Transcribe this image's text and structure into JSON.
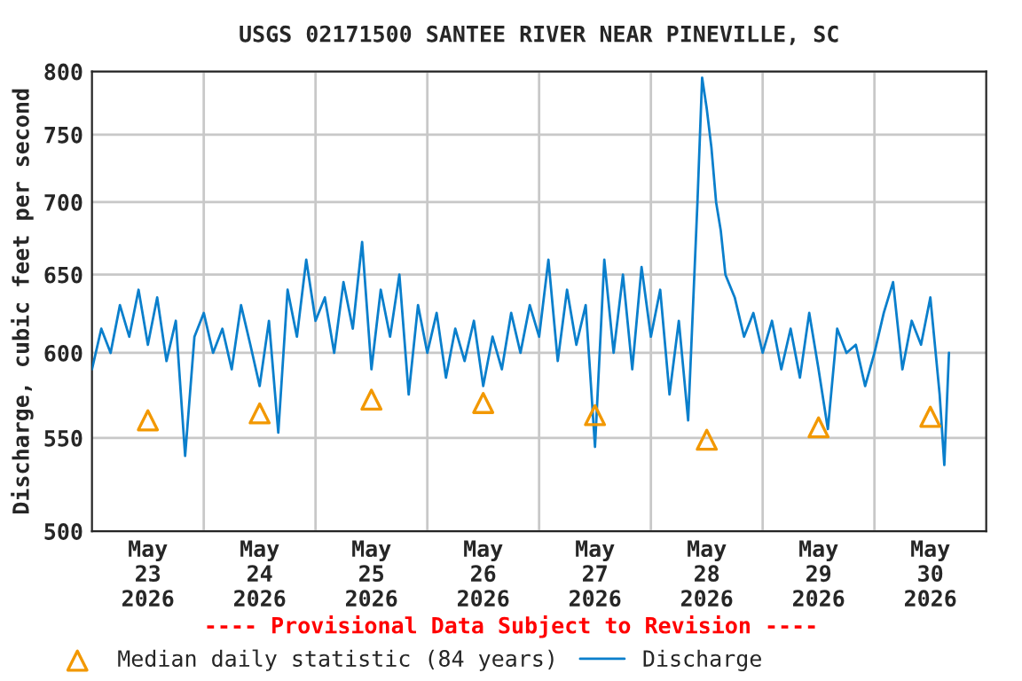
{
  "chart_data": {
    "type": "line",
    "title": "USGS 02171500 SANTEE RIVER NEAR PINEVILLE, SC",
    "ylabel": "Discharge, cubic feet per second",
    "log": "y",
    "ylim": [
      500,
      800
    ],
    "yticks": [
      500,
      550,
      600,
      650,
      700,
      750,
      800
    ],
    "xlim": [
      "2026-05-23T00:00",
      "2026-05-31T00:00"
    ],
    "xticks": [
      {
        "value": "2026-05-23T12:00",
        "label": "May\n23\n2026"
      },
      {
        "value": "2026-05-24T12:00",
        "label": "May\n24\n2026"
      },
      {
        "value": "2026-05-25T12:00",
        "label": "May\n25\n2026"
      },
      {
        "value": "2026-05-26T12:00",
        "label": "May\n26\n2026"
      },
      {
        "value": "2026-05-27T12:00",
        "label": "May\n27\n2026"
      },
      {
        "value": "2026-05-28T12:00",
        "label": "May\n28\n2026"
      },
      {
        "value": "2026-05-29T12:00",
        "label": "May\n29\n2026"
      },
      {
        "value": "2026-05-30T12:00",
        "label": "May\n30\n2026"
      },
      {
        "value": "2026-05-24T00:00",
        "label": null
      },
      {
        "value": "2026-05-25T00:00",
        "label": null
      },
      {
        "value": "2026-05-26T00:00",
        "label": null
      },
      {
        "value": "2026-05-27T00:00",
        "label": null
      },
      {
        "value": "2026-05-28T00:00",
        "label": null
      },
      {
        "value": "2026-05-29T00:00",
        "label": null
      },
      {
        "value": "2026-05-30T00:00",
        "label": null
      }
    ],
    "grid": true,
    "legend": "bottom",
    "annotations": [
      "---- Provisional Data Subject to Revision ----"
    ],
    "series": [
      {
        "name": "Median daily statistic (84 years)",
        "type": "scatter",
        "marker": "triangle",
        "color": "#f29800",
        "x": [
          "2026-05-23T12:00",
          "2026-05-24T12:00",
          "2026-05-25T12:00",
          "2026-05-26T12:00",
          "2026-05-27T12:00",
          "2026-05-28T12:00",
          "2026-05-29T12:00",
          "2026-05-30T12:00"
        ],
        "values": [
          560,
          564,
          572,
          570,
          563,
          549,
          556,
          562
        ]
      },
      {
        "name": "Discharge",
        "marker": "none",
        "color": "#0a7fcc",
        "x": [
          "2026-05-23T00:00",
          "2026-05-23T02:00",
          "2026-05-23T04:00",
          "2026-05-23T06:00",
          "2026-05-23T08:00",
          "2026-05-23T10:00",
          "2026-05-23T12:00",
          "2026-05-23T14:00",
          "2026-05-23T16:00",
          "2026-05-23T18:00",
          "2026-05-23T20:00",
          "2026-05-23T22:00",
          "2026-05-24T00:00",
          "2026-05-24T02:00",
          "2026-05-24T04:00",
          "2026-05-24T06:00",
          "2026-05-24T08:00",
          "2026-05-24T10:00",
          "2026-05-24T12:00",
          "2026-05-24T14:00",
          "2026-05-24T16:00",
          "2026-05-24T18:00",
          "2026-05-24T20:00",
          "2026-05-24T22:00",
          "2026-05-25T00:00",
          "2026-05-25T02:00",
          "2026-05-25T04:00",
          "2026-05-25T06:00",
          "2026-05-25T08:00",
          "2026-05-25T10:00",
          "2026-05-25T12:00",
          "2026-05-25T14:00",
          "2026-05-25T16:00",
          "2026-05-25T18:00",
          "2026-05-25T20:00",
          "2026-05-25T22:00",
          "2026-05-26T00:00",
          "2026-05-26T02:00",
          "2026-05-26T04:00",
          "2026-05-26T06:00",
          "2026-05-26T08:00",
          "2026-05-26T10:00",
          "2026-05-26T12:00",
          "2026-05-26T14:00",
          "2026-05-26T16:00",
          "2026-05-26T18:00",
          "2026-05-26T20:00",
          "2026-05-26T22:00",
          "2026-05-27T00:00",
          "2026-05-27T02:00",
          "2026-05-27T04:00",
          "2026-05-27T06:00",
          "2026-05-27T08:00",
          "2026-05-27T10:00",
          "2026-05-27T12:00",
          "2026-05-27T14:00",
          "2026-05-27T16:00",
          "2026-05-27T18:00",
          "2026-05-27T20:00",
          "2026-05-27T22:00",
          "2026-05-28T00:00",
          "2026-05-28T02:00",
          "2026-05-28T04:00",
          "2026-05-28T06:00",
          "2026-05-28T08:00",
          "2026-05-28T10:00",
          "2026-05-28T11:00",
          "2026-05-28T12:00",
          "2026-05-28T13:00",
          "2026-05-28T14:00",
          "2026-05-28T15:00",
          "2026-05-28T16:00",
          "2026-05-28T18:00",
          "2026-05-28T20:00",
          "2026-05-28T22:00",
          "2026-05-29T00:00",
          "2026-05-29T02:00",
          "2026-05-29T04:00",
          "2026-05-29T06:00",
          "2026-05-29T08:00",
          "2026-05-29T10:00",
          "2026-05-29T12:00",
          "2026-05-29T14:00",
          "2026-05-29T16:00",
          "2026-05-29T18:00",
          "2026-05-29T20:00",
          "2026-05-29T22:00",
          "2026-05-30T00:00",
          "2026-05-30T02:00",
          "2026-05-30T04:00",
          "2026-05-30T06:00",
          "2026-05-30T08:00",
          "2026-05-30T10:00",
          "2026-05-30T12:00",
          "2026-05-30T14:00",
          "2026-05-30T15:00",
          "2026-05-30T16:00"
        ],
        "values": [
          590,
          615,
          600,
          630,
          610,
          640,
          605,
          635,
          595,
          620,
          540,
          610,
          625,
          600,
          615,
          590,
          630,
          605,
          580,
          620,
          553,
          640,
          610,
          660,
          620,
          635,
          600,
          645,
          615,
          672,
          590,
          640,
          610,
          650,
          575,
          630,
          600,
          625,
          585,
          615,
          595,
          620,
          580,
          610,
          590,
          625,
          600,
          630,
          610,
          660,
          595,
          640,
          605,
          630,
          545,
          660,
          600,
          650,
          590,
          655,
          610,
          640,
          575,
          620,
          560,
          700,
          795,
          770,
          740,
          700,
          680,
          650,
          635,
          610,
          625,
          600,
          620,
          590,
          615,
          585,
          625,
          590,
          555,
          615,
          600,
          605,
          580,
          600,
          625,
          645,
          590,
          620,
          605,
          635,
          575,
          535,
          600
        ]
      }
    ]
  }
}
